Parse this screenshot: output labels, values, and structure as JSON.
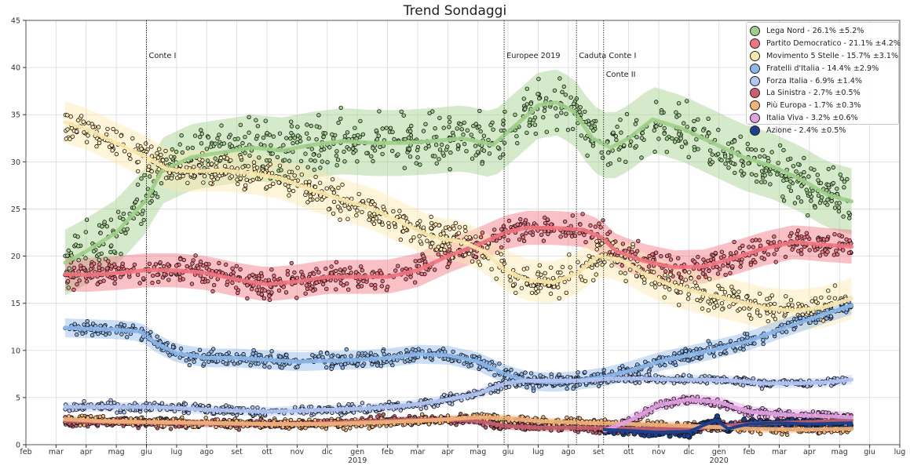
{
  "chart_data": {
    "type": "scatter",
    "title": "Trend Sondaggi",
    "ylim": [
      0,
      45
    ],
    "yticks": [
      0,
      5,
      10,
      15,
      20,
      25,
      30,
      35,
      40,
      45
    ],
    "x_tick_labels": [
      "feb",
      "mar",
      "apr",
      "mag",
      "giu",
      "lug",
      "ago",
      "set",
      "ott",
      "nov",
      "dic",
      "gen",
      "feb",
      "mar",
      "apr",
      "mag",
      "giu",
      "lug",
      "ago",
      "set",
      "ott",
      "nov",
      "dic",
      "gen",
      "feb",
      "mar",
      "apr",
      "mag",
      "giu",
      "lug"
    ],
    "year_labels": [
      {
        "label": "2019",
        "month_index": 11
      },
      {
        "label": "2020",
        "month_index": 23
      }
    ],
    "grid": true,
    "legend_position": "top-right",
    "events": [
      {
        "label": "Conte I",
        "month": 4.0,
        "row": 0
      },
      {
        "label": "Europee 2019",
        "month": 15.87,
        "row": 0
      },
      {
        "label": "Caduta Conte I",
        "month": 18.27,
        "row": 0
      },
      {
        "label": "Conte II",
        "month": 19.17,
        "row": 1
      }
    ],
    "series": [
      {
        "name": "Lega Nord - 26.1% ±5.2%",
        "color": "#9fd08a",
        "band": 3.5,
        "trend": [
          [
            1.3,
            19.3
          ],
          [
            2.0,
            20.5
          ],
          [
            3.0,
            22.5
          ],
          [
            4.0,
            26
          ],
          [
            4.5,
            29
          ],
          [
            5.5,
            30.5
          ],
          [
            6.5,
            31
          ],
          [
            7.5,
            31.5
          ],
          [
            8.5,
            31.2
          ],
          [
            9.5,
            31.8
          ],
          [
            10.5,
            32.2
          ],
          [
            11.5,
            32
          ],
          [
            12.5,
            32
          ],
          [
            13.5,
            32.2
          ],
          [
            14.5,
            32.5
          ],
          [
            15.5,
            31.8
          ],
          [
            16.3,
            34
          ],
          [
            17.0,
            36
          ],
          [
            17.6,
            36.3
          ],
          [
            18.2,
            35.3
          ],
          [
            18.8,
            32.5
          ],
          [
            19.4,
            31.5
          ],
          [
            20.0,
            32.5
          ],
          [
            20.8,
            34.5
          ],
          [
            21.8,
            33.5
          ],
          [
            22.8,
            32
          ],
          [
            23.8,
            30.5
          ],
          [
            24.8,
            29.5
          ],
          [
            25.8,
            28
          ],
          [
            26.6,
            26.5
          ],
          [
            27.4,
            25.8
          ]
        ]
      },
      {
        "name": "Partito Democratico - 21.1% ±4.2%",
        "color": "#f27480",
        "band": 1.8,
        "trend": [
          [
            1.3,
            18.1
          ],
          [
            2.0,
            18
          ],
          [
            3.0,
            18.2
          ],
          [
            4.0,
            18.5
          ],
          [
            5.0,
            18.5
          ],
          [
            6.0,
            18.2
          ],
          [
            7.0,
            17.5
          ],
          [
            8.0,
            17
          ],
          [
            9.0,
            17.3
          ],
          [
            10.0,
            17.8
          ],
          [
            11.0,
            17.8
          ],
          [
            12.0,
            17.8
          ],
          [
            13.0,
            18.5
          ],
          [
            14.0,
            20
          ],
          [
            15.0,
            21.2
          ],
          [
            15.9,
            22.5
          ],
          [
            16.6,
            23
          ],
          [
            17.5,
            23
          ],
          [
            18.5,
            22.8
          ],
          [
            19.1,
            22
          ],
          [
            19.6,
            20.5
          ],
          [
            20.5,
            19.5
          ],
          [
            21.5,
            18.8
          ],
          [
            22.5,
            18.9
          ],
          [
            23.5,
            19.8
          ],
          [
            24.5,
            20.8
          ],
          [
            25.5,
            21.5
          ],
          [
            26.5,
            21.2
          ],
          [
            27.4,
            21
          ]
        ]
      },
      {
        "name": "Movimento 5 Stelle - 15.7% ±3.1%",
        "color": "#fde9ad",
        "band": 2.2,
        "trend": [
          [
            1.3,
            34.2
          ],
          [
            2.0,
            33.5
          ],
          [
            3.0,
            32
          ],
          [
            4.0,
            30.5
          ],
          [
            4.7,
            29.2
          ],
          [
            5.5,
            29
          ],
          [
            6.5,
            29.1
          ],
          [
            7.5,
            28.8
          ],
          [
            8.5,
            28.2
          ],
          [
            9.5,
            27
          ],
          [
            10.5,
            26
          ],
          [
            11.5,
            25
          ],
          [
            12.5,
            23.5
          ],
          [
            13.5,
            22
          ],
          [
            14.5,
            21.5
          ],
          [
            15.2,
            20.5
          ],
          [
            15.9,
            18.5
          ],
          [
            16.6,
            17.5
          ],
          [
            17.5,
            17.2
          ],
          [
            18.3,
            18.2
          ],
          [
            19.0,
            20
          ],
          [
            19.8,
            19.5
          ],
          [
            20.6,
            18
          ],
          [
            21.5,
            16.8
          ],
          [
            22.5,
            16
          ],
          [
            23.5,
            15.3
          ],
          [
            24.5,
            14.5
          ],
          [
            25.5,
            14.2
          ],
          [
            26.5,
            14.6
          ],
          [
            27.4,
            15.5
          ]
        ]
      },
      {
        "name": "Fratelli d'Italia - 14.4% ±2.9%",
        "color": "#8db8ec",
        "band": 1.0,
        "trend": [
          [
            1.3,
            12.4
          ],
          [
            2.0,
            12.3
          ],
          [
            3.0,
            12.2
          ],
          [
            3.8,
            12
          ],
          [
            4.3,
            10.8
          ],
          [
            5.0,
            9.7
          ],
          [
            6.0,
            9.2
          ],
          [
            7.0,
            9.2
          ],
          [
            8.0,
            9
          ],
          [
            9.0,
            8.8
          ],
          [
            10.0,
            8.9
          ],
          [
            11.0,
            9
          ],
          [
            12.0,
            9.2
          ],
          [
            13.0,
            9.6
          ],
          [
            14.0,
            9.5
          ],
          [
            15.0,
            8.8
          ],
          [
            15.9,
            7.5
          ],
          [
            16.6,
            6.8
          ],
          [
            17.5,
            6.6
          ],
          [
            18.3,
            6.8
          ],
          [
            19.2,
            7.2
          ],
          [
            20.0,
            7.8
          ],
          [
            21.0,
            8.8
          ],
          [
            22.0,
            9.5
          ],
          [
            23.0,
            10.2
          ],
          [
            24.0,
            11
          ],
          [
            25.0,
            12.2
          ],
          [
            26.0,
            13.3
          ],
          [
            27.4,
            14.8
          ]
        ]
      },
      {
        "name": "Forza Italia - 6.9% ±1.4%",
        "color": "#b3c7f5",
        "band": 0.5,
        "trend": [
          [
            1.3,
            4
          ],
          [
            2.0,
            4
          ],
          [
            3.0,
            4
          ],
          [
            4.0,
            4
          ],
          [
            5.0,
            3.9
          ],
          [
            6.0,
            3.7
          ],
          [
            7.0,
            3.6
          ],
          [
            8.0,
            3.5
          ],
          [
            9.0,
            3.6
          ],
          [
            10.0,
            3.7
          ],
          [
            11.0,
            3.8
          ],
          [
            12.0,
            4
          ],
          [
            13.0,
            4.3
          ],
          [
            14.0,
            4.8
          ],
          [
            15.0,
            5.4
          ],
          [
            15.9,
            6.5
          ],
          [
            16.6,
            6.8
          ],
          [
            17.5,
            6.8
          ],
          [
            18.5,
            6.8
          ],
          [
            19.5,
            7
          ],
          [
            20.5,
            7
          ],
          [
            21.5,
            6.9
          ],
          [
            22.5,
            6.9
          ],
          [
            23.5,
            6.8
          ],
          [
            24.5,
            6.5
          ],
          [
            25.5,
            6.5
          ],
          [
            26.5,
            6.6
          ],
          [
            27.4,
            6.9
          ]
        ]
      },
      {
        "name": "La Sinistra - 2.7% ±0.5%",
        "color": "#c8606f",
        "band": 0.4,
        "trend": [
          [
            1.3,
            2.5
          ],
          [
            3.0,
            2.4
          ],
          [
            5.0,
            2.3
          ],
          [
            7.0,
            2.2
          ],
          [
            9.0,
            2.2
          ],
          [
            11.0,
            2.4
          ],
          [
            12.5,
            2.6
          ],
          [
            14.0,
            2.7
          ],
          [
            15.0,
            2.5
          ],
          [
            15.9,
            2
          ],
          [
            17.0,
            1.8
          ],
          [
            18.5,
            1.8
          ],
          [
            20.0,
            1.7
          ],
          [
            21.0,
            1.7
          ],
          [
            22.5,
            1.8
          ],
          [
            24.0,
            2.2
          ],
          [
            25.0,
            2.3
          ],
          [
            26.0,
            2.4
          ],
          [
            27.4,
            2.6
          ]
        ]
      },
      {
        "name": "Più Europa - 1.7% ±0.3%",
        "color": "#f3b47a",
        "band": 0.4,
        "trend": [
          [
            1.3,
            2.7
          ],
          [
            2.5,
            2.5
          ],
          [
            4.0,
            2.4
          ],
          [
            6.0,
            2.3
          ],
          [
            8.0,
            2.2
          ],
          [
            10.0,
            2.2
          ],
          [
            12.0,
            2.4
          ],
          [
            13.5,
            2.6
          ],
          [
            15.0,
            2.9
          ],
          [
            15.9,
            2.8
          ],
          [
            17.0,
            2.5
          ],
          [
            18.5,
            2.3
          ],
          [
            20.0,
            2.2
          ],
          [
            22.0,
            2
          ],
          [
            24.0,
            1.7
          ],
          [
            26.0,
            1.6
          ],
          [
            27.4,
            1.7
          ]
        ]
      },
      {
        "name": "Italia Viva - 3.2% ±0.6%",
        "color": "#e2a2e2",
        "band": 0.6,
        "trend": [
          [
            19.2,
            1.5
          ],
          [
            20.0,
            2.5
          ],
          [
            21.0,
            4.2
          ],
          [
            22.0,
            4.8
          ],
          [
            23.0,
            4.5
          ],
          [
            24.0,
            3.5
          ],
          [
            25.0,
            3.2
          ],
          [
            26.0,
            3.1
          ],
          [
            27.4,
            2.9
          ]
        ]
      },
      {
        "name": "Azione - 2.4% ±0.5%",
        "color": "#1f3f8a",
        "band": 0.3,
        "trend": [
          [
            19.2,
            1.6
          ],
          [
            20.0,
            1.5
          ],
          [
            21.0,
            1.3
          ],
          [
            22.0,
            1.4
          ],
          [
            22.9,
            2.6
          ],
          [
            23.3,
            1.7
          ],
          [
            24.0,
            2.2
          ],
          [
            25.0,
            2.3
          ],
          [
            26.0,
            2.2
          ],
          [
            27.4,
            2.3
          ]
        ]
      }
    ]
  }
}
